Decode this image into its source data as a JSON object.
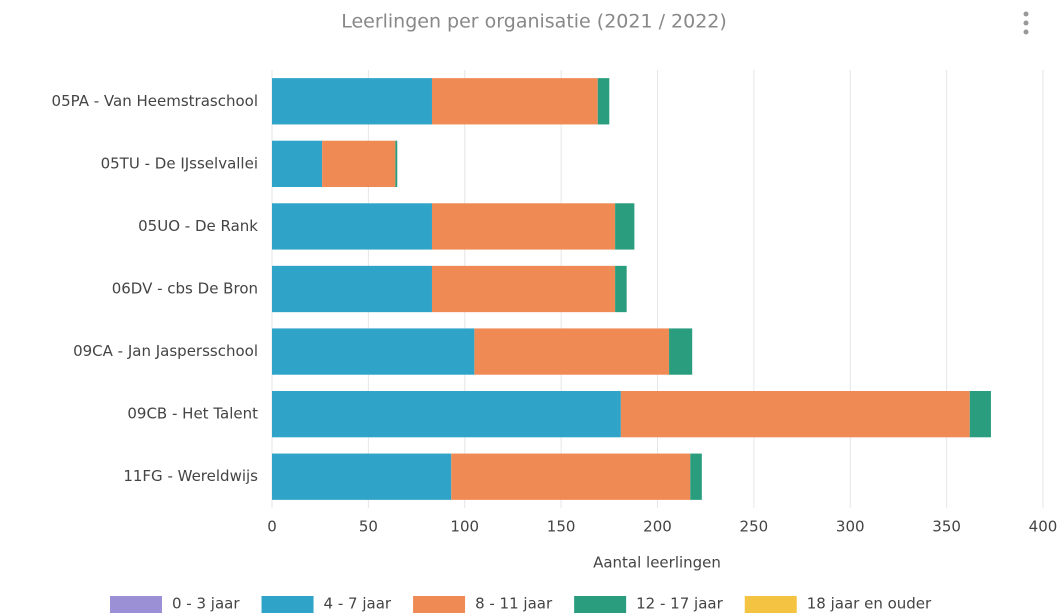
{
  "chart_data": {
    "type": "stacked_barh",
    "title": "Leerlingen per organisatie (2021 / 2022)",
    "x_label": "Aantal leerlingen",
    "categories": [
      "05PA - Van Heemstraschool",
      "05TU - De IJsselvallei",
      "05UO - De Rank",
      "06DV - cbs De Bron",
      "09CA - Jan Jaspersschool",
      "09CB - Het Talent",
      "11FG - Wereldwijs"
    ],
    "series": [
      {
        "name": "0 - 3 jaar",
        "color": "#9b8fd6",
        "values": [
          0,
          0,
          0,
          0,
          0,
          0,
          0
        ]
      },
      {
        "name": "4 - 7 jaar",
        "color": "#2fa4c8",
        "values": [
          83,
          26,
          83,
          83,
          105,
          181,
          93
        ]
      },
      {
        "name": "8 - 11 jaar",
        "color": "#f08a55",
        "values": [
          86,
          38,
          95,
          95,
          101,
          181,
          124
        ]
      },
      {
        "name": "12 - 17 jaar",
        "color": "#2a9d7f",
        "values": [
          6,
          1,
          10,
          6,
          12,
          11,
          6
        ]
      },
      {
        "name": "18 jaar en ouder",
        "color": "#f5c342",
        "values": [
          0,
          0,
          0,
          0,
          0,
          0,
          0
        ]
      }
    ],
    "xlim": [
      0,
      400
    ],
    "xticks": [
      0,
      50,
      100,
      150,
      200,
      250,
      300,
      350,
      400
    ],
    "grid": true
  }
}
